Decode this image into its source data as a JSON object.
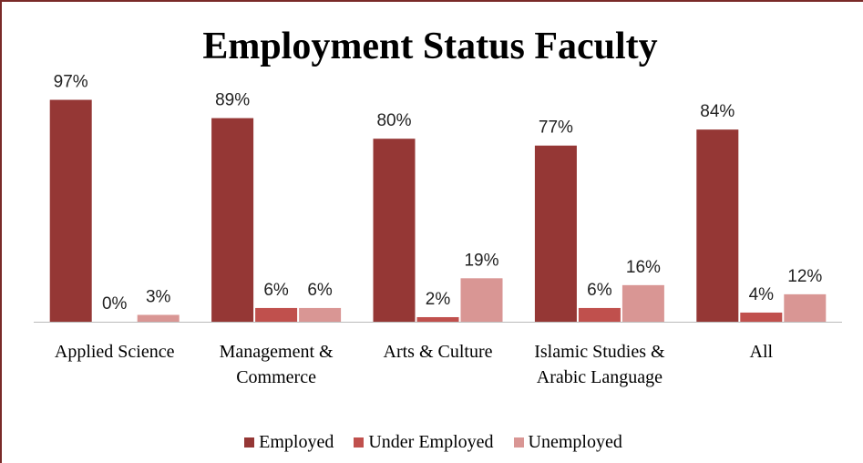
{
  "chart_data": {
    "type": "bar",
    "title": "Employment Status Faculty",
    "categories": [
      "Applied Science",
      "Management & Commerce",
      "Arts & Culture",
      "Islamic Studies & Arabic Language",
      "All"
    ],
    "series": [
      {
        "name": "Employed",
        "color": "#953735",
        "values": [
          97,
          89,
          80,
          77,
          84
        ],
        "value_labels": [
          "97%",
          "89%",
          "80%",
          "77%",
          "84%"
        ]
      },
      {
        "name": "Under Employed",
        "color": "#c0504d",
        "values": [
          0,
          6,
          2,
          6,
          4
        ],
        "value_labels": [
          "0%",
          "6%",
          "2%",
          "6%",
          "4%"
        ]
      },
      {
        "name": "Unemployed",
        "color": "#d99694",
        "values": [
          3,
          6,
          19,
          16,
          12
        ],
        "value_labels": [
          "3%",
          "6%",
          "19%",
          "16%",
          "12%"
        ]
      }
    ],
    "ylim": [
      0,
      100
    ],
    "legend": "bottom"
  }
}
